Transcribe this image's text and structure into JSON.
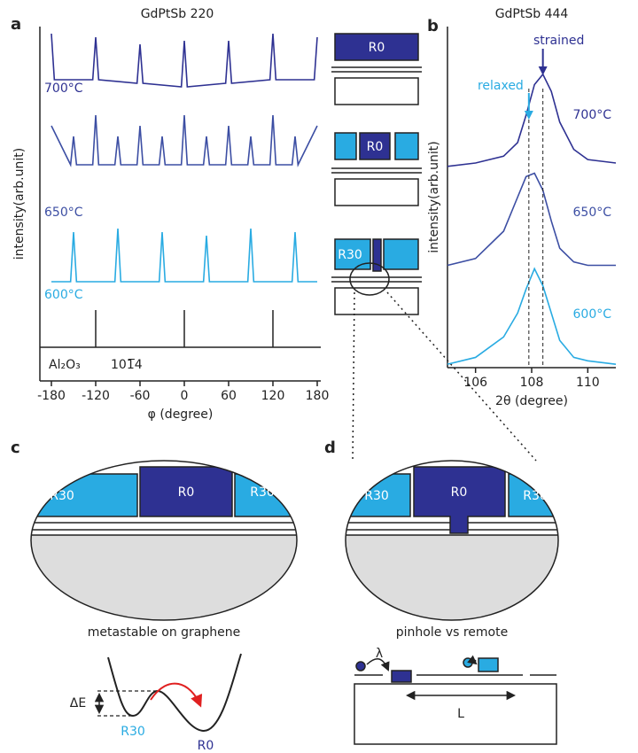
{
  "panel_labels": [
    "a",
    "b",
    "c",
    "d"
  ],
  "chart_data": [
    {
      "type": "line",
      "title": "GdPtSb 220",
      "x_label": "φ (degree)",
      "y_label": "intensity(arb.unit)",
      "xlim": [
        -180,
        180
      ],
      "ylim": [
        0,
        10
      ],
      "xticks": [
        -180,
        -120,
        -60,
        0,
        60,
        120,
        180
      ],
      "series": [
        {
          "name": "700°C",
          "color": "#2e3192",
          "x": [
            -180,
            -176,
            -124,
            -120,
            -116,
            -64,
            -60,
            -56,
            -4,
            0,
            4,
            56,
            60,
            64,
            116,
            120,
            124,
            176,
            180
          ],
          "values": [
            9.8,
            8.5,
            8.5,
            9.7,
            8.5,
            8.4,
            9.5,
            8.4,
            8.3,
            9.6,
            8.3,
            8.4,
            9.6,
            8.4,
            8.5,
            9.8,
            8.5,
            8.5,
            9.7
          ]
        },
        {
          "name": "650°C",
          "color": "#3c4ea3",
          "x": [
            -180,
            -154,
            -150,
            -146,
            -124,
            -120,
            -116,
            -94,
            -90,
            -86,
            -64,
            -60,
            -56,
            -34,
            -30,
            -26,
            -4,
            0,
            4,
            26,
            30,
            34,
            56,
            60,
            64,
            86,
            90,
            94,
            116,
            120,
            124,
            146,
            150,
            154,
            180
          ],
          "values": [
            7.2,
            6.1,
            6.9,
            6.1,
            6.1,
            7.5,
            6.1,
            6.1,
            6.9,
            6.1,
            6.1,
            7.2,
            6.1,
            6.1,
            6.9,
            6.1,
            6.1,
            7.5,
            6.1,
            6.1,
            6.9,
            6.1,
            6.1,
            7.2,
            6.1,
            6.1,
            6.9,
            6.1,
            6.1,
            7.5,
            6.1,
            6.1,
            6.9,
            6.1,
            7.2
          ]
        },
        {
          "name": "600°C",
          "color": "#29abe2",
          "x": [
            -180,
            -154,
            -150,
            -146,
            -94,
            -90,
            -86,
            -34,
            -30,
            -26,
            26,
            30,
            34,
            86,
            90,
            94,
            146,
            150,
            154,
            180
          ],
          "values": [
            2.8,
            2.8,
            4.2,
            2.8,
            2.8,
            4.3,
            2.8,
            2.8,
            4.2,
            2.8,
            2.8,
            4.1,
            2.8,
            2.8,
            4.3,
            2.8,
            2.8,
            4.2,
            2.8,
            2.8
          ]
        }
      ],
      "reference": {
        "name": "Al₂O₃",
        "label": "101̅4",
        "x": [
          -120,
          0,
          120
        ],
        "values": [
          2,
          2,
          2
        ],
        "base": 0.95
      }
    },
    {
      "type": "line",
      "title": "GdPtSb 444",
      "x_label": "2θ (degree)",
      "y_label": "intensity(arb.unit)",
      "xlim": [
        105,
        111
      ],
      "ylim": [
        0,
        10
      ],
      "xticks": [
        106,
        108,
        110
      ],
      "series": [
        {
          "name": "700°C",
          "color": "#2e3192",
          "x": [
            105,
            106,
            107,
            107.5,
            107.8,
            108.1,
            108.4,
            108.7,
            109,
            109.5,
            110,
            111
          ],
          "values": [
            5.9,
            6.0,
            6.2,
            6.6,
            7.4,
            8.3,
            8.6,
            8.1,
            7.2,
            6.4,
            6.1,
            6.0
          ]
        },
        {
          "name": "650°C",
          "color": "#3c4ea3",
          "x": [
            105,
            106,
            107,
            107.5,
            107.8,
            108.1,
            108.4,
            108.7,
            109,
            109.5,
            110,
            111
          ],
          "values": [
            3.0,
            3.2,
            4.0,
            5.0,
            5.6,
            5.7,
            5.2,
            4.3,
            3.5,
            3.1,
            3.0,
            3.0
          ]
        },
        {
          "name": "600°C",
          "color": "#29abe2",
          "x": [
            105,
            106,
            107,
            107.5,
            107.8,
            108.1,
            108.4,
            108.7,
            109,
            109.5,
            110,
            111
          ],
          "values": [
            0.1,
            0.3,
            0.9,
            1.6,
            2.3,
            2.9,
            2.4,
            1.6,
            0.8,
            0.3,
            0.2,
            0.1
          ]
        }
      ],
      "markers": [
        {
          "x": 107.9,
          "label": "relaxed",
          "color": "#29abe2"
        },
        {
          "x": 108.4,
          "label": "strained",
          "color": "#2e3192"
        }
      ]
    }
  ],
  "schematic": {
    "labels": [
      "R0",
      "R0",
      "R30"
    ]
  },
  "panel_c": {
    "blocks": [
      "R30",
      "R0",
      "R30"
    ],
    "caption": "metastable on graphene",
    "energy_labels": [
      "ΔE",
      "R30",
      "R0"
    ]
  },
  "panel_d": {
    "blocks": [
      "R30",
      "R0",
      "R30"
    ],
    "caption": "pinhole vs remote",
    "labels": [
      "λ",
      "L"
    ]
  }
}
